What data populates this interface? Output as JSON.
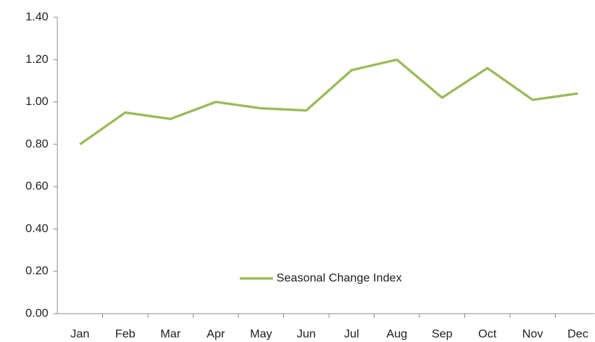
{
  "chart_data": {
    "type": "line",
    "categories": [
      "Jan",
      "Feb",
      "Mar",
      "Apr",
      "May",
      "Jun",
      "Jul",
      "Aug",
      "Sep",
      "Oct",
      "Nov",
      "Dec"
    ],
    "series": [
      {
        "name": "Seasonal Change Index",
        "color": "#9bbb59",
        "values": [
          0.8,
          0.95,
          0.92,
          1.0,
          0.97,
          0.96,
          1.15,
          1.2,
          1.02,
          1.16,
          1.01,
          1.04
        ]
      }
    ],
    "ylim": [
      0,
      1.4
    ],
    "yticks": [
      {
        "value": 0,
        "label": "0.00"
      },
      {
        "value": 0.2,
        "label": "0.20"
      },
      {
        "value": 0.4,
        "label": "0.40"
      },
      {
        "value": 0.6,
        "label": "0.60"
      },
      {
        "value": 0.8,
        "label": "0.80"
      },
      {
        "value": 1.0,
        "label": "1.00"
      },
      {
        "value": 1.2,
        "label": "1.20"
      },
      {
        "value": 1.4,
        "label": "1.40"
      }
    ],
    "grid": false,
    "legend": "bottom"
  }
}
